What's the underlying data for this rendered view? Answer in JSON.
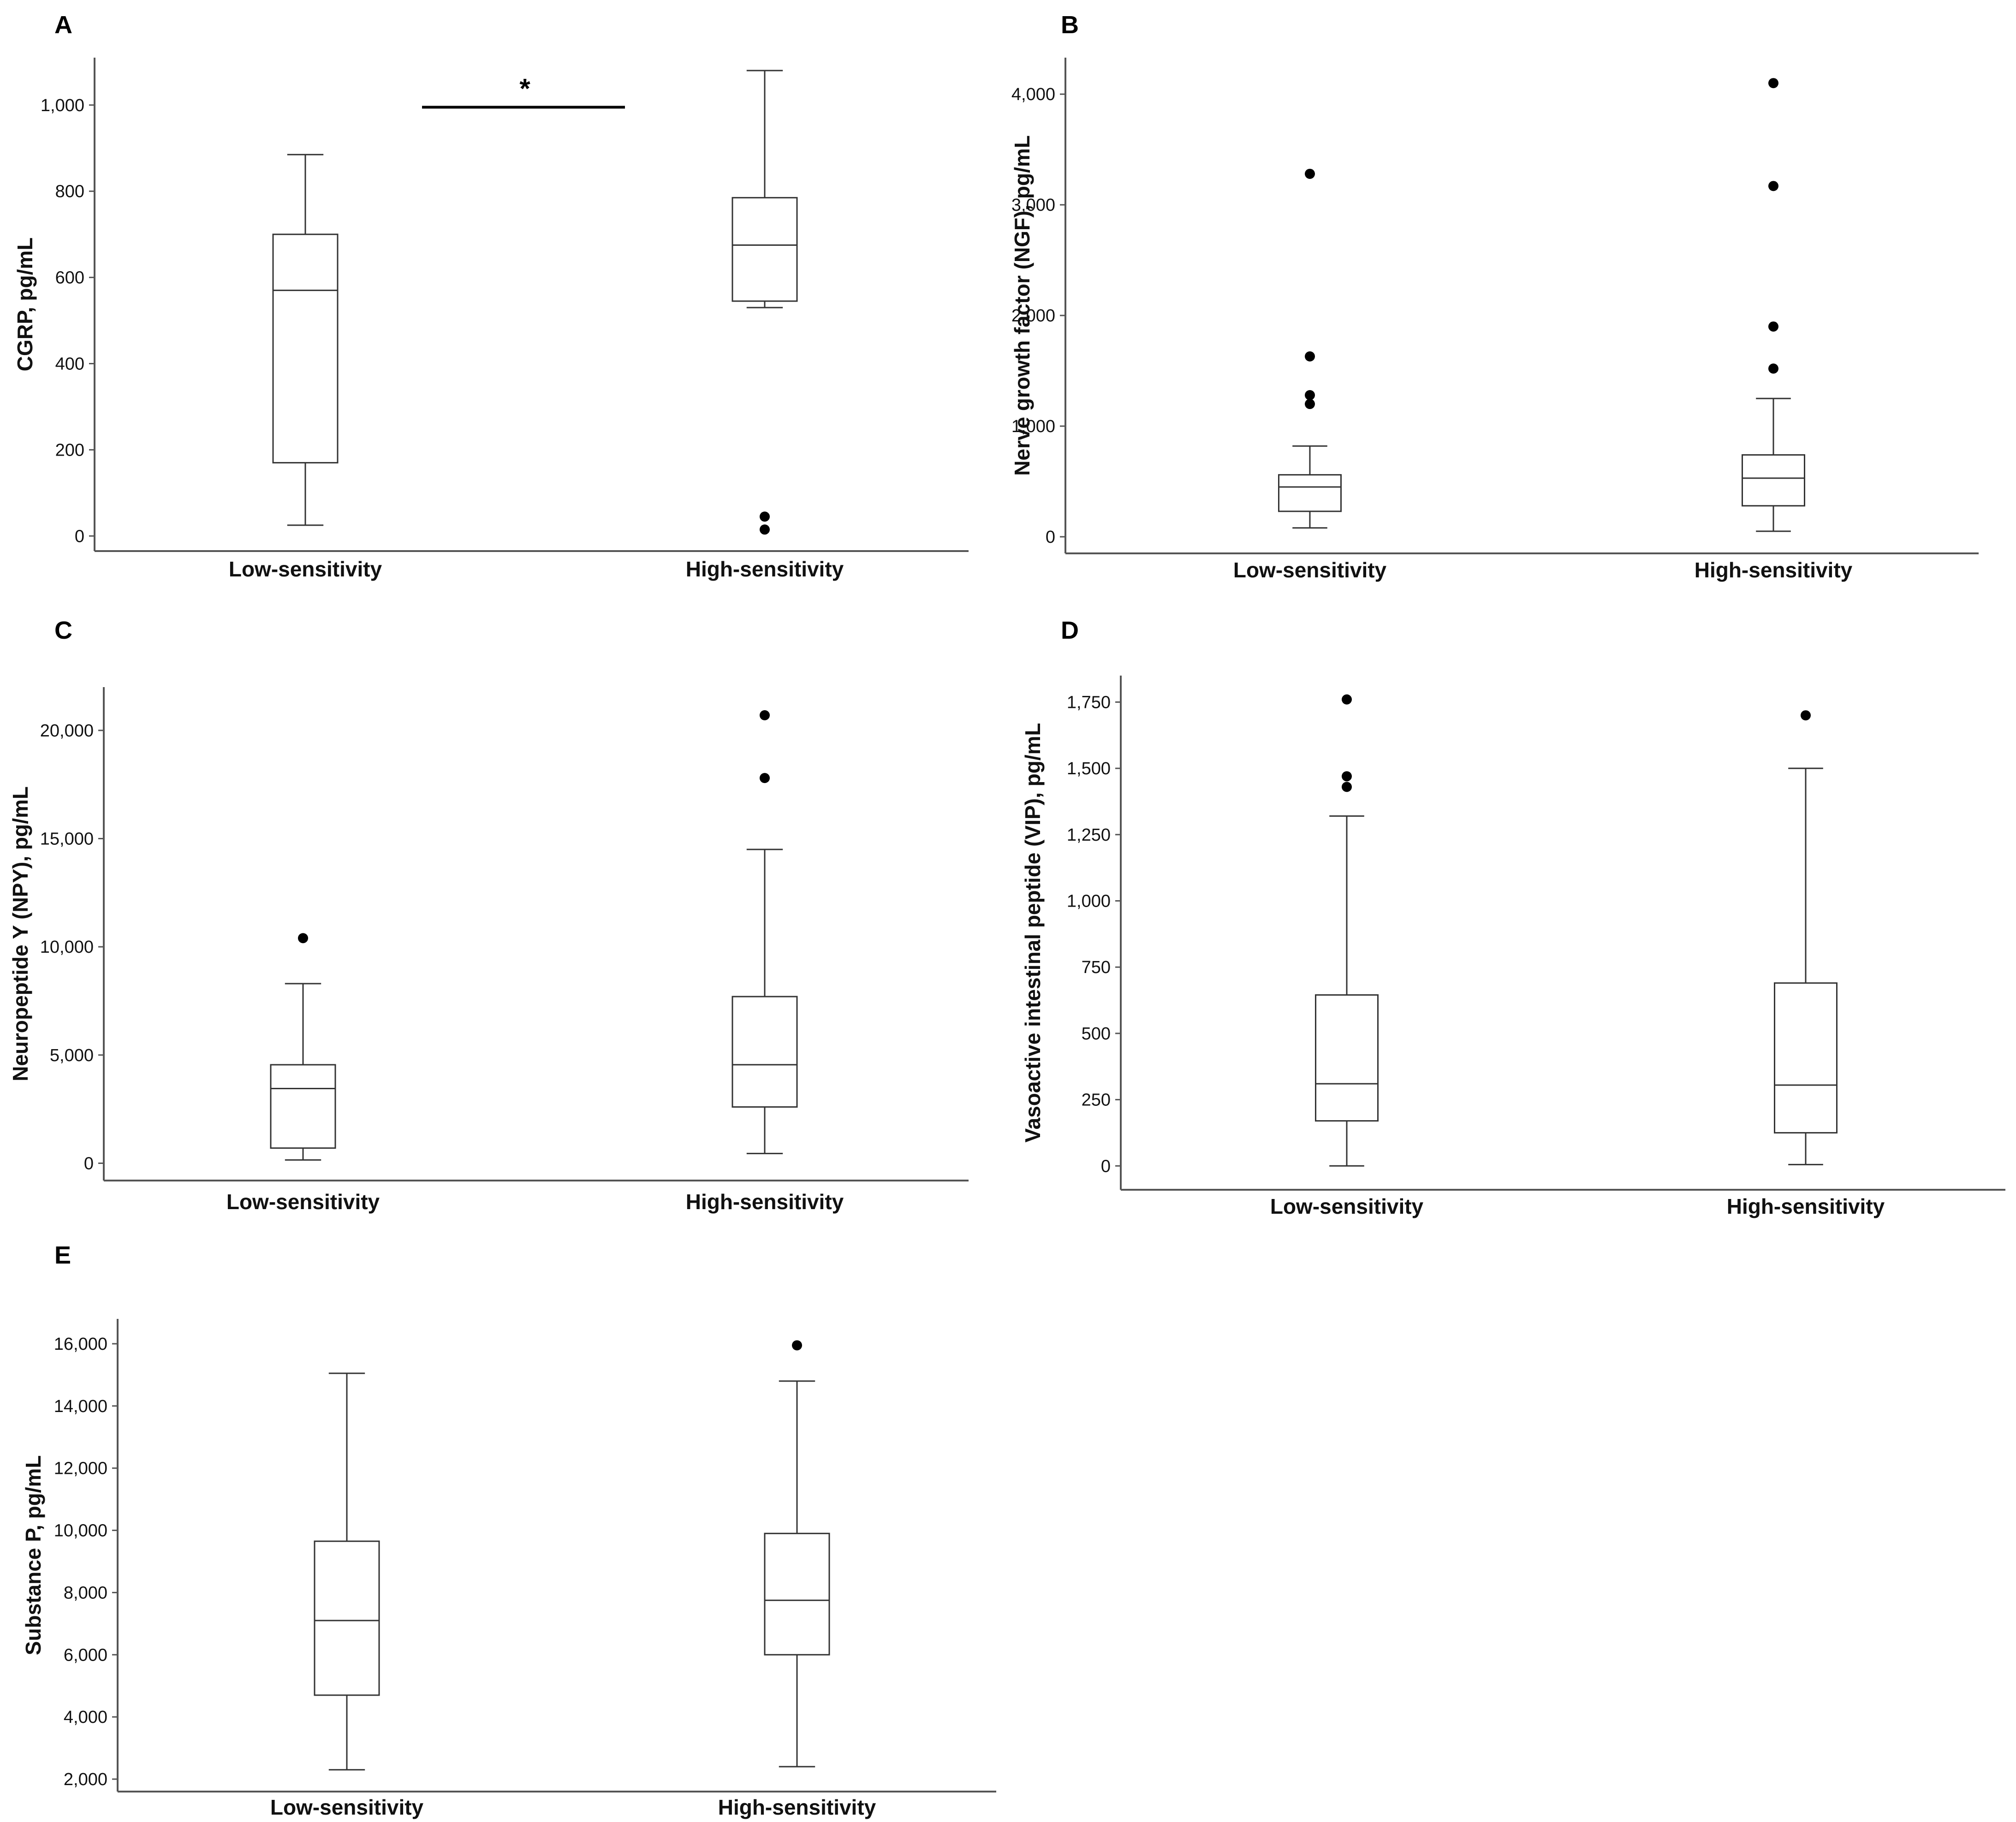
{
  "colors": {
    "axis": "#555555",
    "box": "#333333",
    "outlier": "#000000",
    "background": "#ffffff"
  },
  "chart_data": [
    {
      "type": "box",
      "panel": "A",
      "ylabel": "CGRP, pg/mL",
      "ylim": [
        -35,
        1110
      ],
      "yticks": [
        0,
        200,
        400,
        600,
        800,
        1000
      ],
      "ytick_labels": [
        "0",
        "200",
        "400",
        "600",
        "800",
        "1,000"
      ],
      "categories": [
        "Low-sensitivity",
        "High-sensitivity"
      ],
      "boxes": [
        {
          "whisker_low": 25,
          "q1": 170,
          "median": 570,
          "q3": 700,
          "whisker_high": 885,
          "outliers": []
        },
        {
          "whisker_low": 530,
          "q1": 545,
          "median": 675,
          "q3": 785,
          "whisker_high": 1080,
          "outliers": [
            45,
            15
          ]
        }
      ],
      "significance": {
        "label": "*",
        "y": 995
      }
    },
    {
      "type": "box",
      "panel": "B",
      "ylabel": "Nerve growth factor (NGF), pg/mL",
      "ylim": [
        -150,
        4330
      ],
      "yticks": [
        0,
        1000,
        2000,
        3000,
        4000
      ],
      "ytick_labels": [
        "0",
        "1,000",
        "2,000",
        "3,000",
        "4,000"
      ],
      "categories": [
        "Low-sensitivity",
        "High-sensitivity"
      ],
      "boxes": [
        {
          "whisker_low": 80,
          "q1": 230,
          "median": 450,
          "q3": 560,
          "whisker_high": 820,
          "outliers": [
            1200,
            1280,
            1630,
            3280
          ]
        },
        {
          "whisker_low": 50,
          "q1": 280,
          "median": 530,
          "q3": 740,
          "whisker_high": 1250,
          "outliers": [
            1520,
            1900,
            3170,
            4100
          ]
        }
      ]
    },
    {
      "type": "box",
      "panel": "C",
      "ylabel": "Neuropeptide Y (NPY), pg/mL",
      "ylim": [
        -800,
        22000
      ],
      "yticks": [
        0,
        5000,
        10000,
        15000,
        20000
      ],
      "ytick_labels": [
        "0",
        "5,000",
        "10,000",
        "15,000",
        "20,000"
      ],
      "categories": [
        "Low-sensitivity",
        "High-sensitivity"
      ],
      "boxes": [
        {
          "whisker_low": 150,
          "q1": 700,
          "median": 3450,
          "q3": 4550,
          "whisker_high": 8300,
          "outliers": [
            10400
          ]
        },
        {
          "whisker_low": 450,
          "q1": 2600,
          "median": 4550,
          "q3": 7700,
          "whisker_high": 14500,
          "outliers": [
            17800,
            20700
          ]
        }
      ]
    },
    {
      "type": "box",
      "panel": "D",
      "ylabel": "Vasoactive intestinal peptide (VIP), pg/mL",
      "ylim": [
        -90,
        1850
      ],
      "yticks": [
        0,
        250,
        500,
        750,
        1000,
        1250,
        1500,
        1750
      ],
      "ytick_labels": [
        "0",
        "250",
        "500",
        "750",
        "1,000",
        "1,250",
        "1,500",
        "1,750"
      ],
      "categories": [
        "Low-sensitivity",
        "High-sensitivity"
      ],
      "boxes": [
        {
          "whisker_low": 0,
          "q1": 170,
          "median": 310,
          "q3": 645,
          "whisker_high": 1320,
          "outliers": [
            1430,
            1470,
            1760
          ]
        },
        {
          "whisker_low": 5,
          "q1": 125,
          "median": 305,
          "q3": 690,
          "whisker_high": 1500,
          "outliers": [
            1700
          ]
        }
      ]
    },
    {
      "type": "box",
      "panel": "E",
      "ylabel": "Substance P, pg/mL",
      "ylim": [
        1600,
        16800
      ],
      "yticks": [
        2000,
        4000,
        6000,
        8000,
        10000,
        12000,
        14000,
        16000
      ],
      "ytick_labels": [
        "2,000",
        "4,000",
        "6,000",
        "8,000",
        "10,000",
        "12,000",
        "14,000",
        "16,000"
      ],
      "categories": [
        "Low-sensitivity",
        "High-sensitivity"
      ],
      "boxes": [
        {
          "whisker_low": 2300,
          "q1": 4700,
          "median": 7100,
          "q3": 9650,
          "whisker_high": 15050,
          "outliers": []
        },
        {
          "whisker_low": 2400,
          "q1": 6000,
          "median": 7750,
          "q3": 9900,
          "whisker_high": 14800,
          "outliers": [
            15950
          ]
        }
      ]
    }
  ]
}
